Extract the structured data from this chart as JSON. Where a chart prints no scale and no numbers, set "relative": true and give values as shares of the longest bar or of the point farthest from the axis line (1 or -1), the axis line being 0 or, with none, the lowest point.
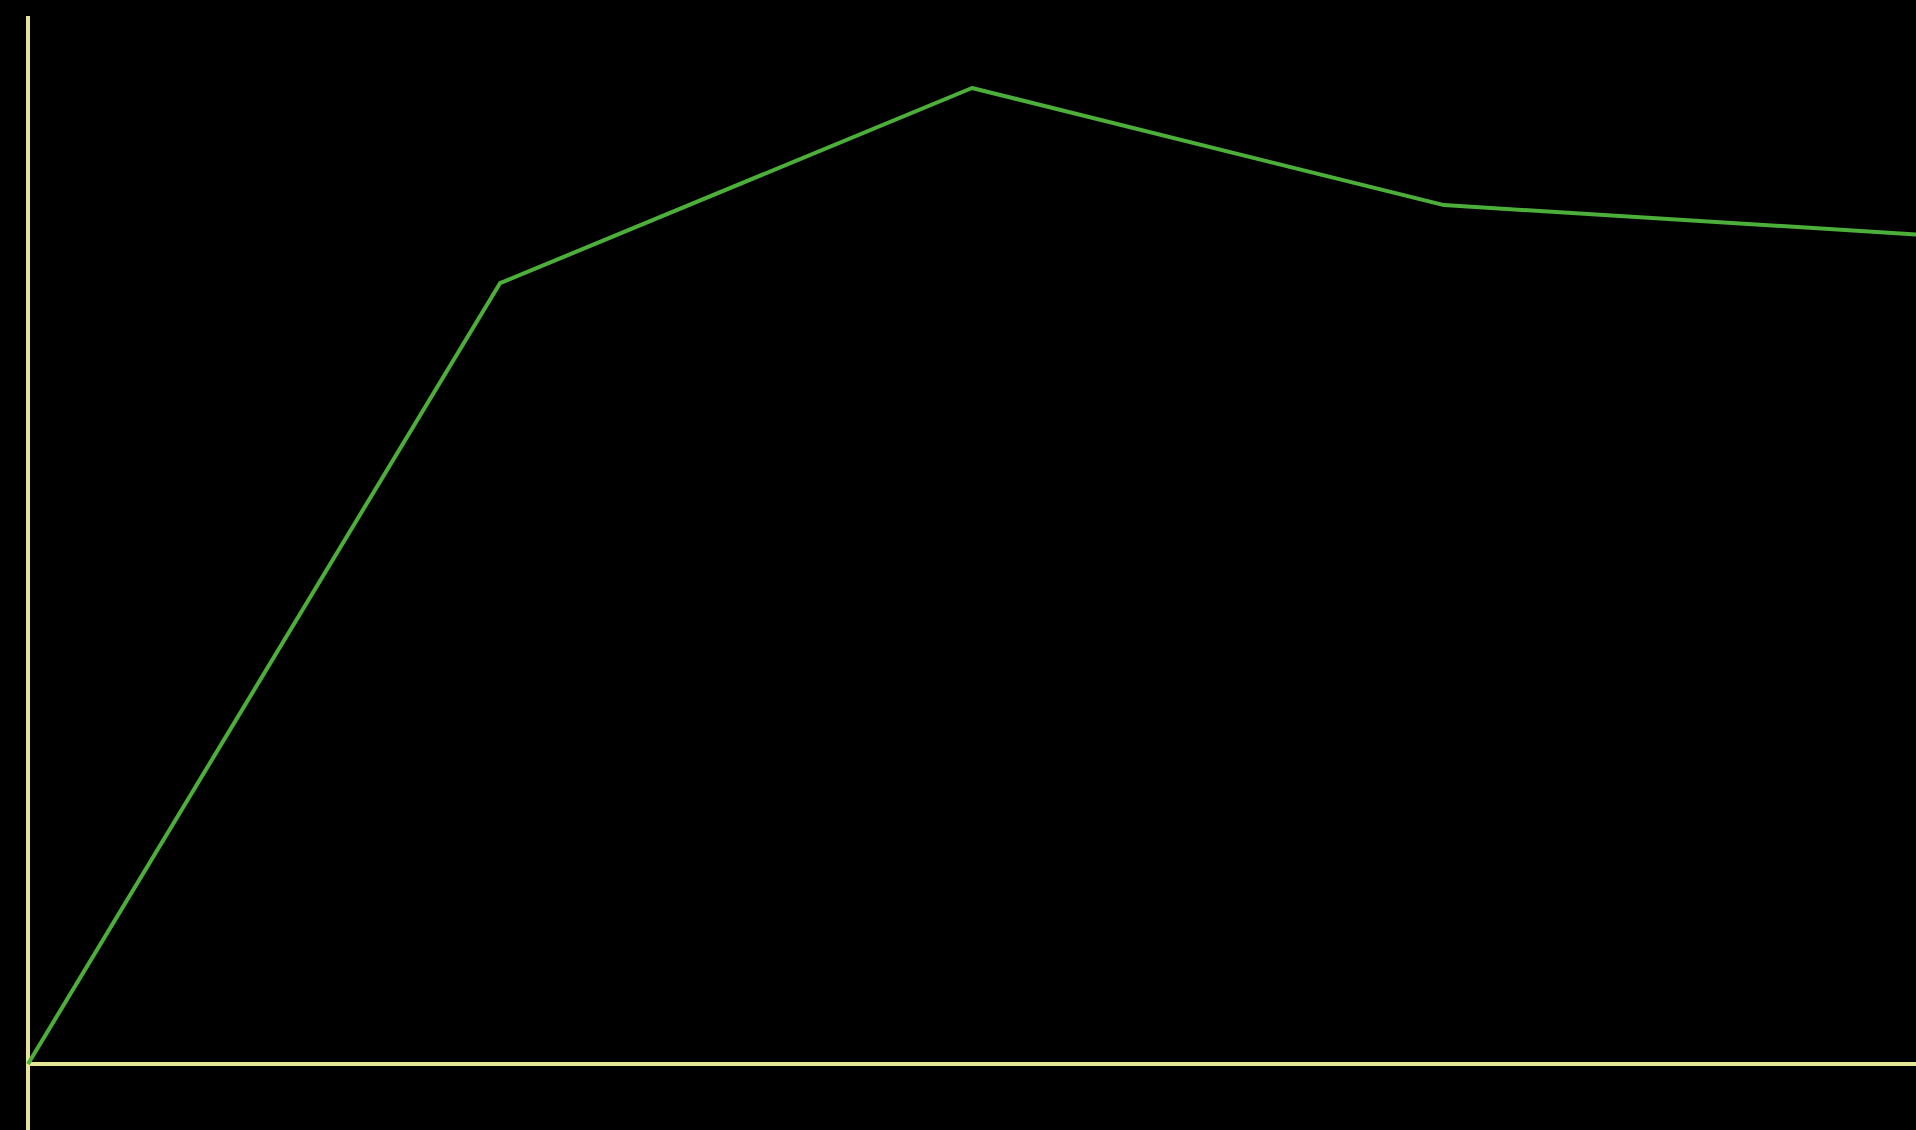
{
  "chart_data": {
    "type": "line",
    "relative": true,
    "categories": [
      null,
      null,
      null,
      null,
      null
    ],
    "series": [
      {
        "color": "#4caf3a",
        "values": [
          0,
          0.8,
          1,
          0.88,
          0.85
        ]
      }
    ],
    "marker": "none",
    "line_style": "solid",
    "legend": false
  }
}
